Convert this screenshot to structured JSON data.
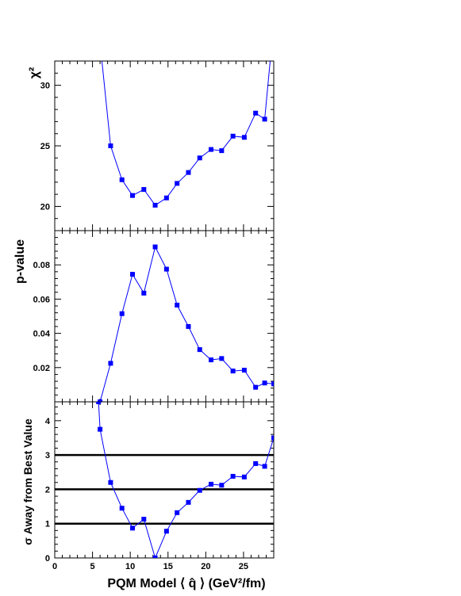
{
  "chart_data": [
    {
      "type": "line",
      "id": "chi2",
      "ylabel": "χ²",
      "ylim": [
        18,
        32
      ],
      "yticks": [
        20,
        25,
        30
      ],
      "xlim": [
        0,
        29
      ],
      "series": [
        {
          "color": "#0000ff",
          "x": [
            6.0,
            7.4,
            8.9,
            10.3,
            11.8,
            13.3,
            14.8,
            16.2,
            17.7,
            19.2,
            20.7,
            22.1,
            23.6,
            25.1,
            26.6,
            27.8,
            28.6
          ],
          "y": [
            33.5,
            25.0,
            22.2,
            20.9,
            21.4,
            20.1,
            20.7,
            21.9,
            22.8,
            24.0,
            24.7,
            24.6,
            25.8,
            25.7,
            27.7,
            27.2,
            32.5
          ]
        }
      ]
    },
    {
      "type": "line",
      "id": "pvalue",
      "ylabel": "p-value",
      "ylim": [
        0.0,
        0.1
      ],
      "yticks": [
        0.02,
        0.04,
        0.06,
        0.08
      ],
      "ytick_labels": [
        "0.02",
        "0.04",
        "0.06",
        "0.08"
      ],
      "xlim": [
        0,
        29
      ],
      "series": [
        {
          "color": "#0000ff",
          "x": [
            6.0,
            7.4,
            8.9,
            10.3,
            11.8,
            13.3,
            14.8,
            16.2,
            17.7,
            19.2,
            20.7,
            22.1,
            23.6,
            25.1,
            26.6,
            27.8,
            29.0
          ],
          "y": [
            0.0,
            0.0225,
            0.0515,
            0.0745,
            0.0635,
            0.0905,
            0.0775,
            0.0565,
            0.044,
            0.0305,
            0.0245,
            0.0253,
            0.018,
            0.0185,
            0.0085,
            0.011,
            0.0105
          ]
        }
      ]
    },
    {
      "type": "line",
      "id": "sigma",
      "ylabel": "σ Away from Best Value",
      "xlabel": "PQM Model ⟨ q̂ ⟩ (GeV²/fm)",
      "ylim": [
        0,
        4.55
      ],
      "yticks": [
        0,
        1,
        2,
        3,
        4
      ],
      "xlim": [
        0,
        29
      ],
      "xticks": [
        0,
        5,
        10,
        15,
        20,
        25
      ],
      "reference_lines": [
        1,
        2,
        3
      ],
      "series": [
        {
          "color": "#0000ff",
          "x": [
            5.8,
            6.0,
            7.4,
            8.9,
            10.3,
            11.8,
            13.3,
            14.8,
            16.2,
            17.7,
            19.2,
            20.7,
            22.1,
            23.6,
            25.1,
            26.6,
            27.8,
            29.0
          ],
          "y": [
            4.55,
            3.75,
            2.2,
            1.45,
            0.87,
            1.13,
            0.0,
            0.78,
            1.32,
            1.62,
            1.97,
            2.15,
            2.12,
            2.38,
            2.36,
            2.75,
            2.67,
            3.5
          ]
        }
      ]
    }
  ]
}
